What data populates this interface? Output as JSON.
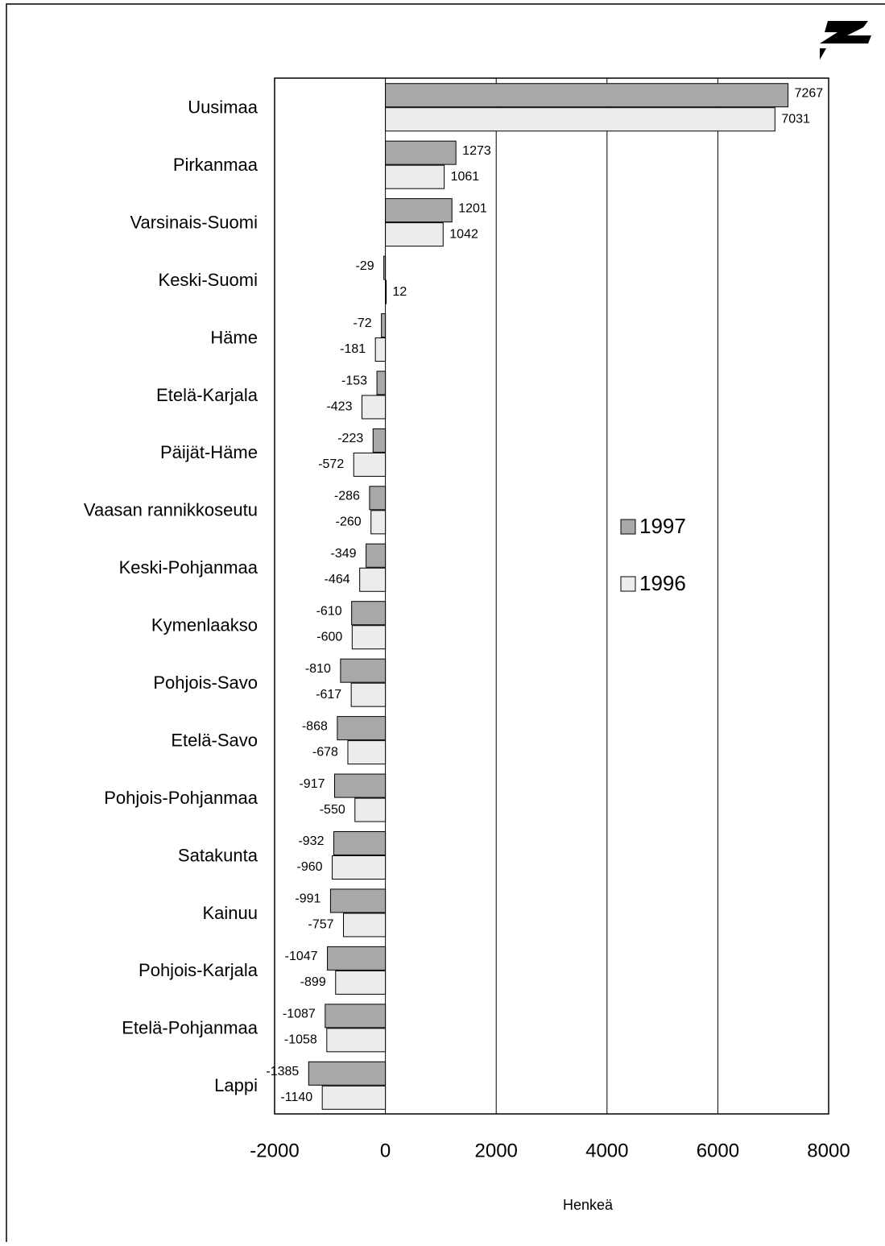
{
  "chart_data": {
    "type": "bar",
    "orientation": "horizontal",
    "categories": [
      "Uusimaa",
      "Pirkanmaa",
      "Varsinais-Suomi",
      "Keski-Suomi",
      "Häme",
      "Etelä-Karjala",
      "Päijät-Häme",
      "Vaasan rannikkoseutu",
      "Keski-Pohjanmaa",
      "Kymenlaakso",
      "Pohjois-Savo",
      "Etelä-Savo",
      "Pohjois-Pohjanmaa",
      "Satakunta",
      "Kainuu",
      "Pohjois-Karjala",
      "Etelä-Pohjanmaa",
      "Lappi"
    ],
    "series": [
      {
        "name": "1997",
        "color": "#a8a8a8",
        "values": [
          7267,
          1273,
          1201,
          -29,
          -72,
          -153,
          -223,
          -286,
          -349,
          -610,
          -810,
          -868,
          -917,
          -932,
          -991,
          -1047,
          -1087,
          -1385
        ]
      },
      {
        "name": "1996",
        "color": "#ececec",
        "values": [
          7031,
          1061,
          1042,
          12,
          -181,
          -423,
          -572,
          -260,
          -464,
          -600,
          -617,
          -678,
          -550,
          -960,
          -757,
          -899,
          -1058,
          -1140
        ]
      }
    ],
    "xlabel": "Henkeä",
    "xlim": [
      -2000,
      8000
    ],
    "xticks": [
      -2000,
      0,
      2000,
      4000,
      6000,
      8000
    ],
    "grid": true,
    "legend": "right"
  }
}
